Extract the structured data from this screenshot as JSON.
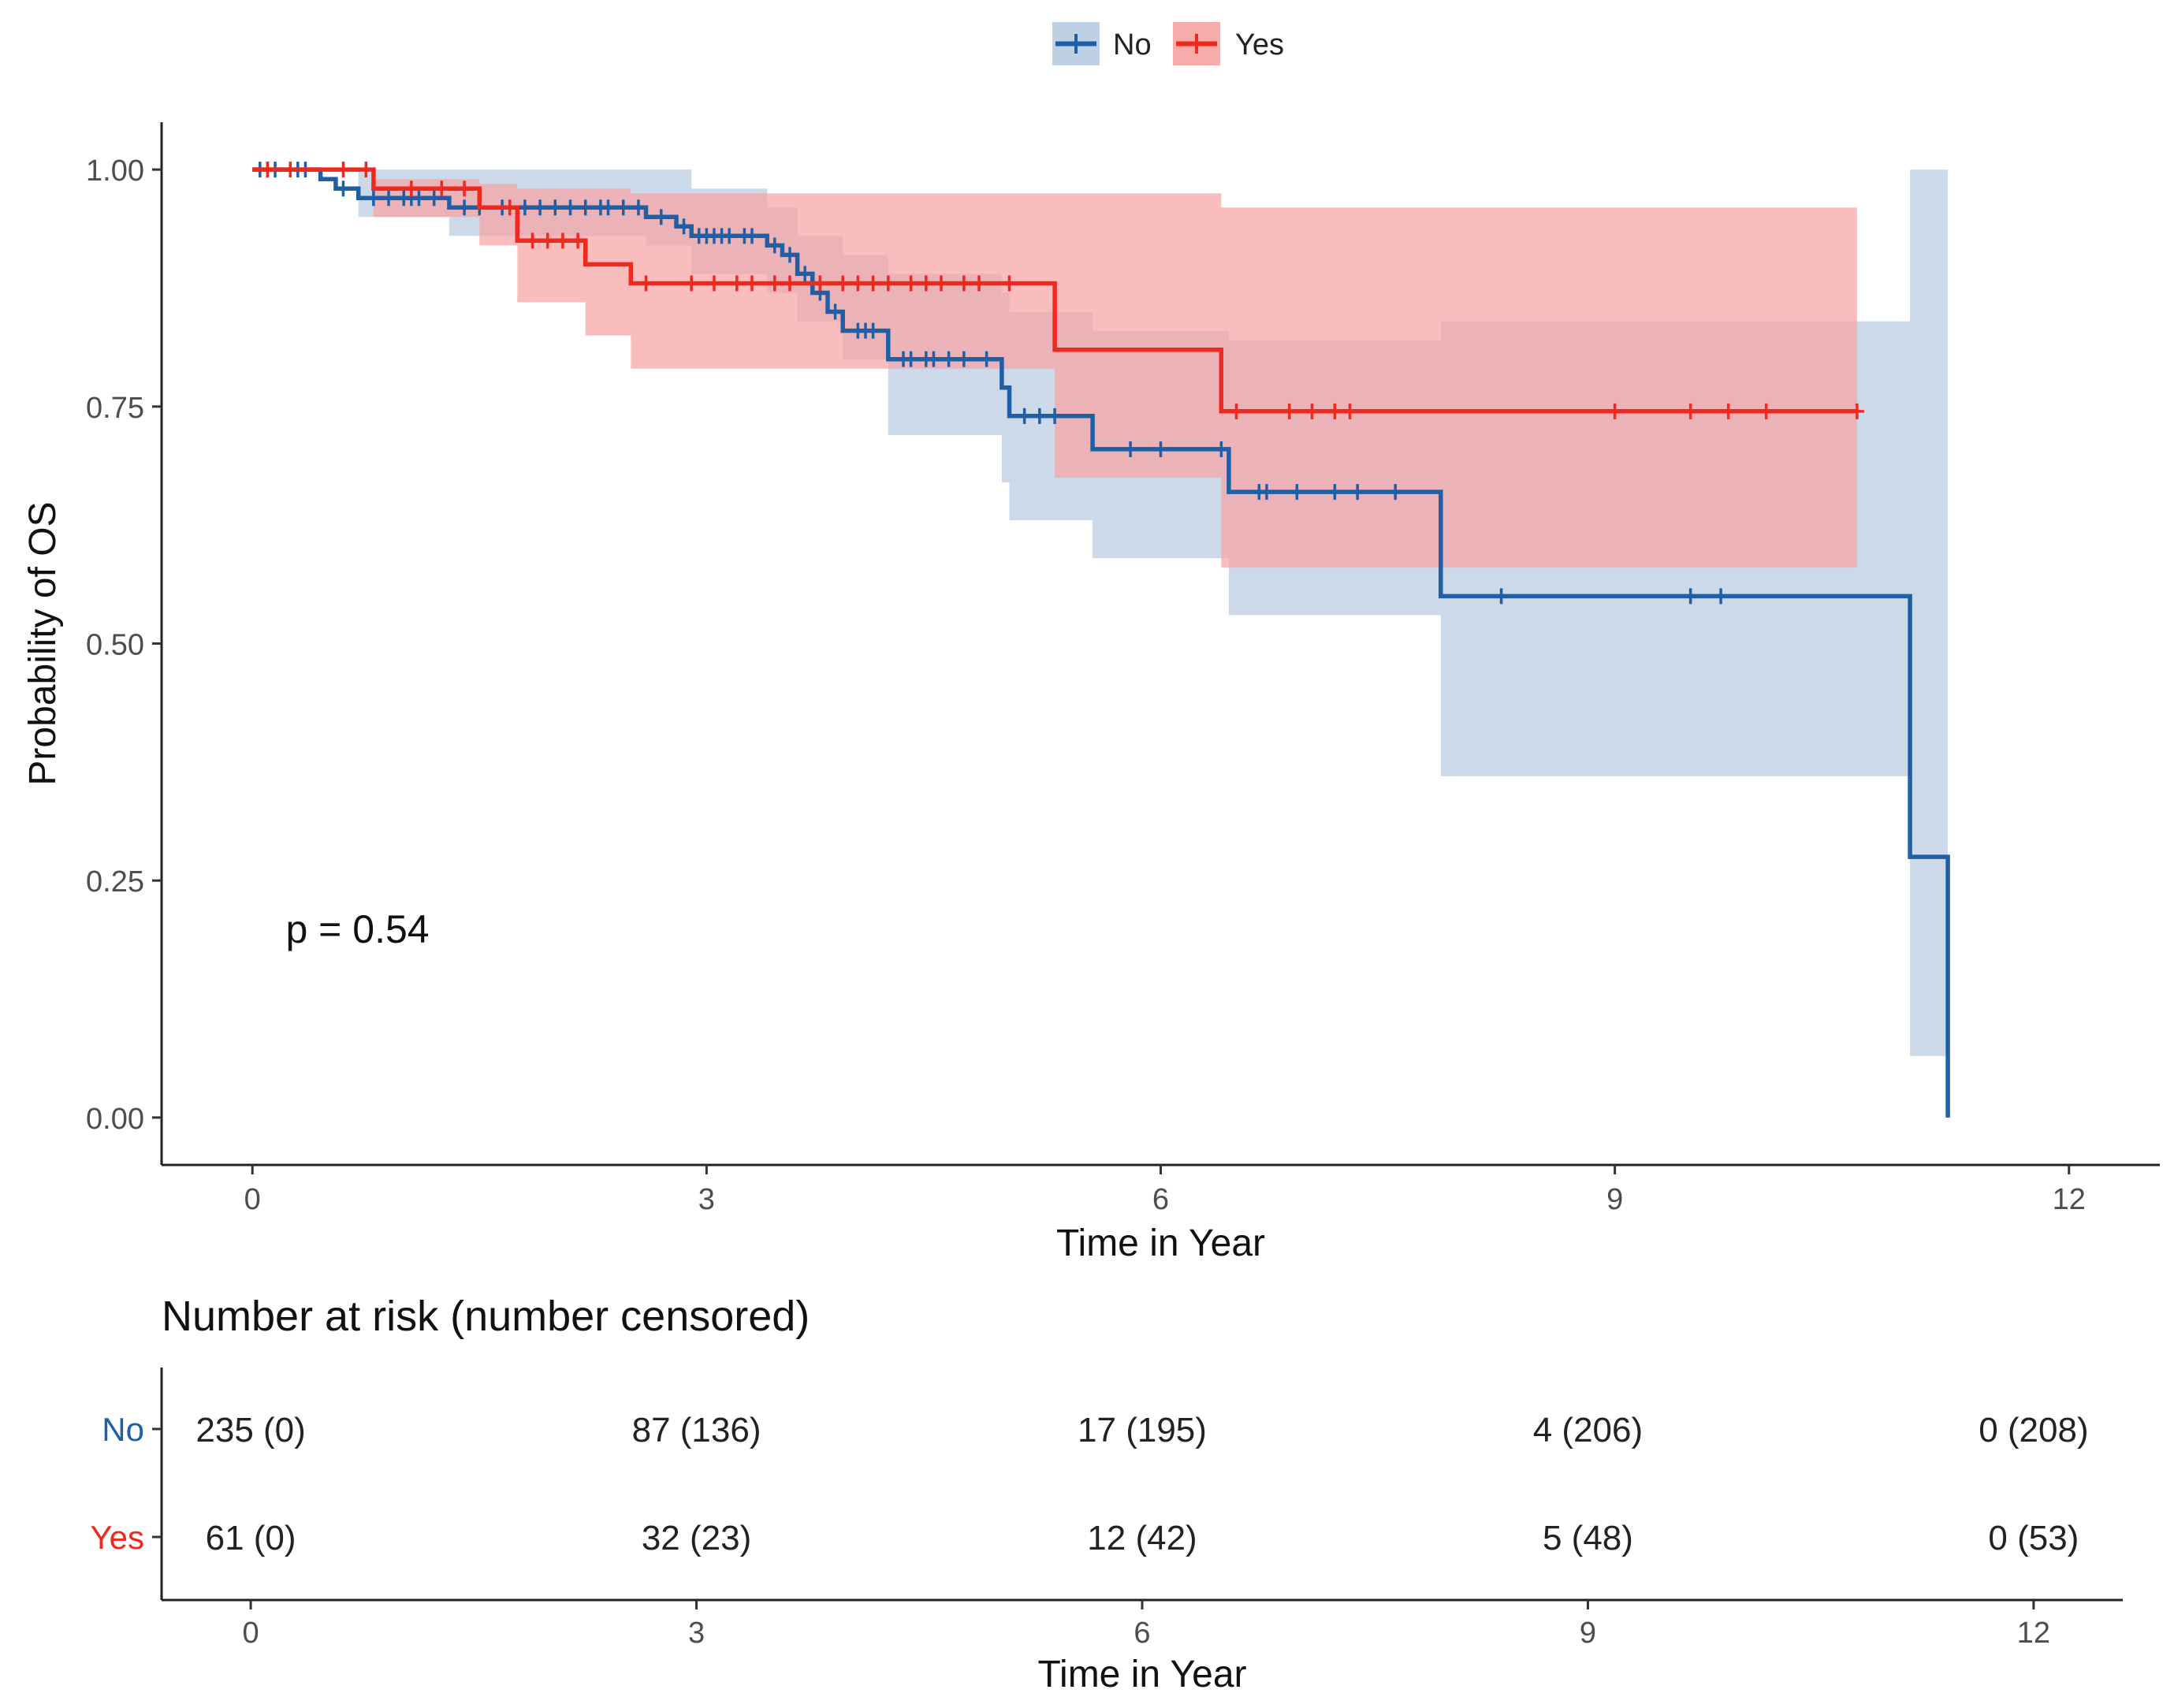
{
  "chart_data": [
    {
      "type": "line",
      "subtype": "kaplan-meier",
      "title": "",
      "xlabel": "Time in Year",
      "ylabel": "Probability of OS",
      "xlim": [
        -0.6,
        12.6
      ],
      "ylim": [
        -0.05,
        1.05
      ],
      "x_ticks": [
        0,
        3,
        6,
        9,
        12
      ],
      "y_ticks": [
        0,
        0.25,
        0.5,
        0.75,
        1.0
      ],
      "x_tick_labels": [
        "0",
        "3",
        "6",
        "9",
        "12"
      ],
      "y_tick_labels": [
        "0.00",
        "0.25",
        "0.50",
        "0.75",
        "1.00"
      ],
      "grid": false,
      "legend_position": "top",
      "annotation": "p = 0.54",
      "series": [
        {
          "name": "No",
          "color": "#1f5fa5",
          "ci_color": "#b7cbe0",
          "steps": [
            [
              0,
              1.0
            ],
            [
              0.45,
              0.99
            ],
            [
              0.55,
              0.98
            ],
            [
              0.7,
              0.97
            ],
            [
              1.3,
              0.96
            ],
            [
              2.6,
              0.95
            ],
            [
              2.8,
              0.94
            ],
            [
              2.9,
              0.93
            ],
            [
              3.4,
              0.92
            ],
            [
              3.5,
              0.91
            ],
            [
              3.6,
              0.89
            ],
            [
              3.7,
              0.87
            ],
            [
              3.8,
              0.85
            ],
            [
              3.9,
              0.83
            ],
            [
              4.2,
              0.8
            ],
            [
              4.95,
              0.77
            ],
            [
              5.0,
              0.74
            ],
            [
              5.55,
              0.705
            ],
            [
              6.45,
              0.66
            ],
            [
              7.85,
              0.55
            ],
            [
              10.95,
              0.275
            ],
            [
              11.2,
              0.0
            ]
          ],
          "ci_upper": [
            [
              0,
              1.0
            ],
            [
              2.9,
              0.98
            ],
            [
              3.4,
              0.96
            ],
            [
              3.6,
              0.93
            ],
            [
              3.9,
              0.91
            ],
            [
              4.2,
              0.89
            ],
            [
              4.95,
              0.87
            ],
            [
              5.0,
              0.85
            ],
            [
              5.55,
              0.83
            ],
            [
              6.45,
              0.82
            ],
            [
              7.85,
              0.84
            ],
            [
              10.95,
              1.0
            ],
            [
              11.2,
              1.0
            ]
          ],
          "ci_lower": [
            [
              0,
              1.0
            ],
            [
              0.7,
              0.95
            ],
            [
              1.3,
              0.93
            ],
            [
              2.6,
              0.92
            ],
            [
              2.9,
              0.89
            ],
            [
              3.4,
              0.87
            ],
            [
              3.6,
              0.84
            ],
            [
              3.9,
              0.8
            ],
            [
              4.2,
              0.72
            ],
            [
              4.95,
              0.67
            ],
            [
              5.0,
              0.63
            ],
            [
              5.55,
              0.59
            ],
            [
              6.45,
              0.53
            ],
            [
              7.85,
              0.36
            ],
            [
              10.95,
              0.065
            ],
            [
              11.2,
              0.065
            ]
          ],
          "censor_times": [
            0.05,
            0.1,
            0.15,
            0.3,
            0.35,
            0.6,
            0.8,
            0.9,
            1.0,
            1.05,
            1.1,
            1.2,
            1.4,
            1.5,
            1.65,
            1.8,
            1.9,
            2.0,
            2.1,
            2.2,
            2.3,
            2.35,
            2.45,
            2.55,
            2.7,
            2.85,
            2.95,
            3.0,
            3.05,
            3.1,
            3.15,
            3.25,
            3.3,
            3.45,
            3.55,
            3.65,
            3.75,
            3.85,
            4.0,
            4.05,
            4.1,
            4.3,
            4.35,
            4.45,
            4.5,
            4.6,
            4.7,
            4.85,
            5.1,
            5.2,
            5.3,
            5.8,
            6.0,
            6.4,
            6.65,
            6.7,
            6.9,
            7.15,
            7.3,
            7.55,
            8.25,
            9.5,
            9.7
          ]
        },
        {
          "name": "Yes",
          "color": "#f0281e",
          "ci_color": "#f6a3a3",
          "steps": [
            [
              0,
              1.0
            ],
            [
              0.8,
              0.98
            ],
            [
              1.5,
              0.96
            ],
            [
              1.75,
              0.925
            ],
            [
              2.2,
              0.9
            ],
            [
              2.5,
              0.88
            ],
            [
              5.3,
              0.81
            ],
            [
              6.4,
              0.745
            ],
            [
              10.6,
              0.745
            ]
          ],
          "ci_upper": [
            [
              0,
              1.0
            ],
            [
              0.8,
              0.99
            ],
            [
              1.5,
              0.985
            ],
            [
              1.75,
              0.98
            ],
            [
              2.2,
              0.98
            ],
            [
              2.5,
              0.975
            ],
            [
              5.3,
              0.975
            ],
            [
              6.4,
              0.96
            ],
            [
              10.6,
              0.96
            ]
          ],
          "ci_lower": [
            [
              0,
              1.0
            ],
            [
              0.8,
              0.95
            ],
            [
              1.5,
              0.92
            ],
            [
              1.75,
              0.86
            ],
            [
              2.2,
              0.825
            ],
            [
              2.5,
              0.79
            ],
            [
              5.3,
              0.675
            ],
            [
              6.4,
              0.58
            ],
            [
              10.6,
              0.58
            ]
          ],
          "censor_times": [
            0.1,
            0.25,
            0.6,
            0.75,
            1.05,
            1.25,
            1.4,
            1.7,
            1.85,
            1.95,
            2.05,
            2.15,
            2.6,
            2.9,
            3.05,
            3.2,
            3.3,
            3.45,
            3.55,
            3.75,
            3.9,
            4.0,
            4.1,
            4.2,
            4.35,
            4.45,
            4.55,
            4.7,
            4.8,
            5.0,
            6.5,
            6.85,
            7.0,
            7.15,
            7.25,
            9.0,
            9.5,
            9.75,
            10.0,
            10.6
          ]
        }
      ]
    },
    {
      "type": "table",
      "title": "Number at risk (number censored)",
      "xlabel": "Time in Year",
      "x_ticks": [
        0,
        3,
        6,
        9,
        12
      ],
      "x_tick_labels": [
        "0",
        "3",
        "6",
        "9",
        "12"
      ],
      "rows": [
        {
          "name": "No",
          "color": "#1f5fa5",
          "cells": [
            "235 (0)",
            "87 (136)",
            "17 (195)",
            "4 (206)",
            "0 (208)"
          ]
        },
        {
          "name": "Yes",
          "color": "#f0281e",
          "cells": [
            "61 (0)",
            "32 (23)",
            "12 (42)",
            "5 (48)",
            "0 (53)"
          ]
        }
      ]
    }
  ]
}
